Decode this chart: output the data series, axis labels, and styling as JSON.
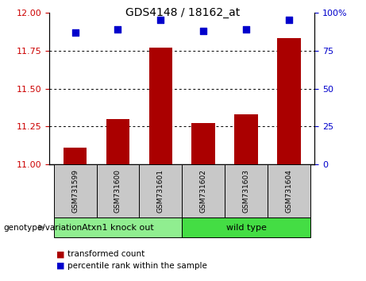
{
  "title": "GDS4148 / 18162_at",
  "categories": [
    "GSM731599",
    "GSM731600",
    "GSM731601",
    "GSM731602",
    "GSM731603",
    "GSM731604"
  ],
  "bar_values": [
    11.11,
    11.3,
    11.77,
    11.27,
    11.33,
    11.83
  ],
  "dot_values": [
    87,
    89,
    95,
    88,
    89,
    95
  ],
  "ylim_left": [
    11,
    12
  ],
  "ylim_right": [
    0,
    100
  ],
  "yticks_left": [
    11,
    11.25,
    11.5,
    11.75,
    12
  ],
  "yticks_right": [
    0,
    25,
    50,
    75,
    100
  ],
  "bar_color": "#aa0000",
  "dot_color": "#0000cc",
  "bar_bottom": 11,
  "groups": [
    {
      "label": "Atxn1 knock out",
      "indices": [
        0,
        1,
        2
      ],
      "color": "#90ee90"
    },
    {
      "label": "wild type",
      "indices": [
        3,
        4,
        5
      ],
      "color": "#44dd44"
    }
  ],
  "group_label": "genotype/variation",
  "legend_bar_label": "transformed count",
  "legend_dot_label": "percentile rank within the sample",
  "tick_label_color_left": "#cc0000",
  "tick_label_color_right": "#0000cc",
  "sample_box_color": "#c8c8c8",
  "bar_width": 0.55,
  "dot_size": 28
}
